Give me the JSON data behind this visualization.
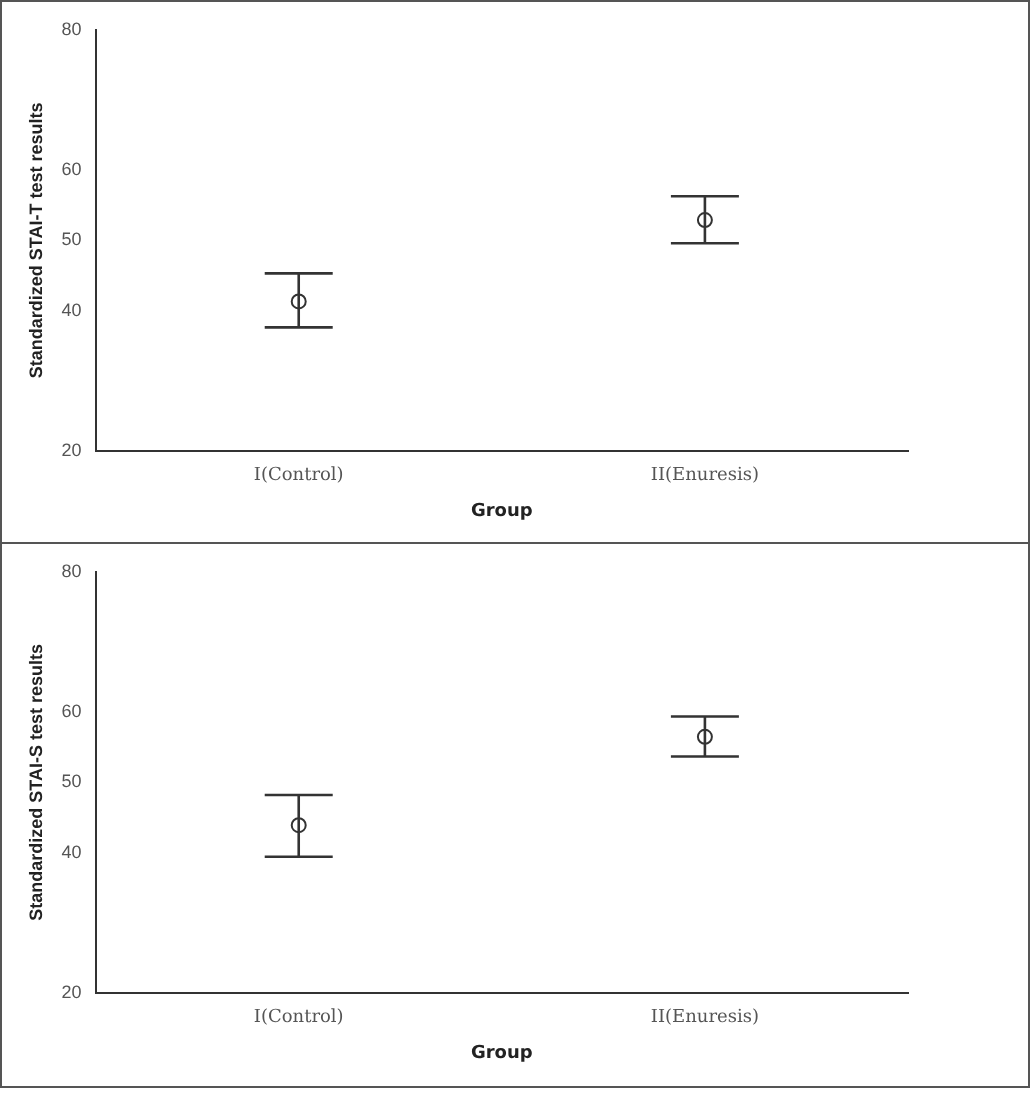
{
  "chart_data": [
    {
      "type": "scatter",
      "categories": [
        "I(Control)",
        "II(Enuresis)"
      ],
      "values": [
        41.3,
        52.9
      ],
      "errors": [
        [
          37.6,
          45.3
        ],
        [
          49.6,
          56.3
        ]
      ],
      "color": "#333333",
      "xlabel": "Group",
      "ylabel": "Standardized STAI-T test results",
      "ylim": [
        20,
        80
      ],
      "yticks": [
        20,
        40,
        50,
        60,
        80
      ],
      "grid": false,
      "legend": false,
      "marker": "circle"
    },
    {
      "type": "scatter",
      "categories": [
        "I(Control)",
        "II(Enuresis)"
      ],
      "values": [
        43.9,
        56.5
      ],
      "errors": [
        [
          39.4,
          48.2
        ],
        [
          53.7,
          59.4
        ]
      ],
      "color": "#333333",
      "xlabel": "Group",
      "ylabel": "Standardized STAI-S test results",
      "ylim": [
        20,
        80
      ],
      "yticks": [
        20,
        40,
        50,
        60,
        80
      ],
      "grid": false,
      "legend": false,
      "marker": "circle"
    }
  ]
}
